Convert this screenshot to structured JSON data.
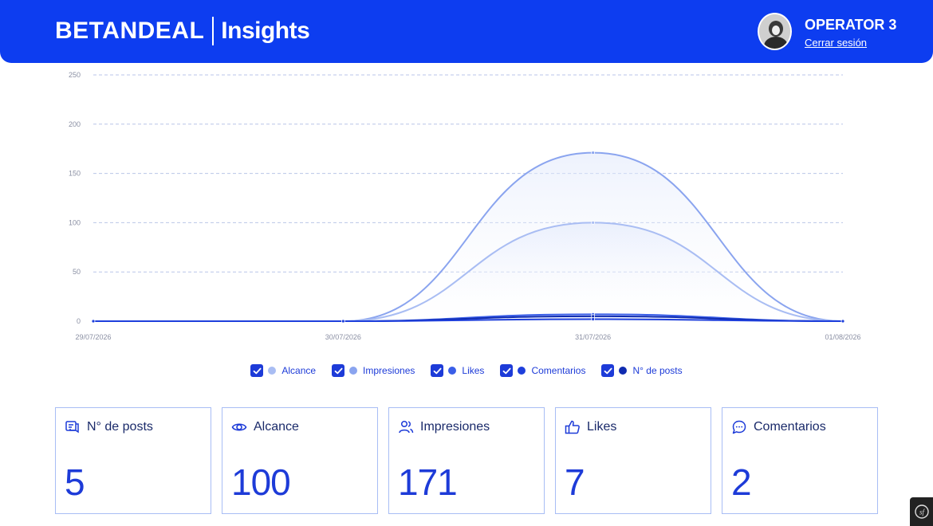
{
  "header": {
    "brand": "BETANDEAL",
    "section": "Insights",
    "user": "OPERATOR 3",
    "logout": "Cerrar sesión"
  },
  "legend": [
    {
      "label": "Alcance",
      "color": "#a9bdf3",
      "checked": true
    },
    {
      "label": "Impresiones",
      "color": "#8aa4ef",
      "checked": true
    },
    {
      "label": "Likes",
      "color": "#3a5ee8",
      "checked": true
    },
    {
      "label": "Comentarios",
      "color": "#1e3fdc",
      "checked": true
    },
    {
      "label": "N° de posts",
      "color": "#0f2bb0",
      "checked": true
    }
  ],
  "cards": [
    {
      "title": "N° de posts",
      "value": "5",
      "icon": "posts-icon"
    },
    {
      "title": "Alcance",
      "value": "100",
      "icon": "eye-icon"
    },
    {
      "title": "Impresiones",
      "value": "171",
      "icon": "users-icon"
    },
    {
      "title": "Likes",
      "value": "7",
      "icon": "thumbs-up-icon"
    },
    {
      "title": "Comentarios",
      "value": "2",
      "icon": "comment-icon"
    }
  ],
  "chart_data": {
    "type": "area",
    "categories": [
      "29/07/2026",
      "30/07/2026",
      "31/07/2026",
      "01/08/2026"
    ],
    "y_ticks": [
      "0",
      "50",
      "100",
      "150",
      "200",
      "250"
    ],
    "ylim": [
      0,
      250
    ],
    "grid": true,
    "series": [
      {
        "name": "Alcance",
        "values": [
          0,
          0,
          100,
          0
        ],
        "color": "#a9bdf3"
      },
      {
        "name": "Impresiones",
        "values": [
          0,
          0,
          171,
          0
        ],
        "color": "#8aa4ef"
      },
      {
        "name": "Likes",
        "values": [
          0,
          0,
          7,
          0
        ],
        "color": "#3a5ee8"
      },
      {
        "name": "Comentarios",
        "values": [
          0,
          0,
          2,
          0
        ],
        "color": "#1e3fdc"
      },
      {
        "name": "N° de posts",
        "values": [
          0,
          0,
          5,
          0
        ],
        "color": "#0f2bb0"
      }
    ]
  }
}
